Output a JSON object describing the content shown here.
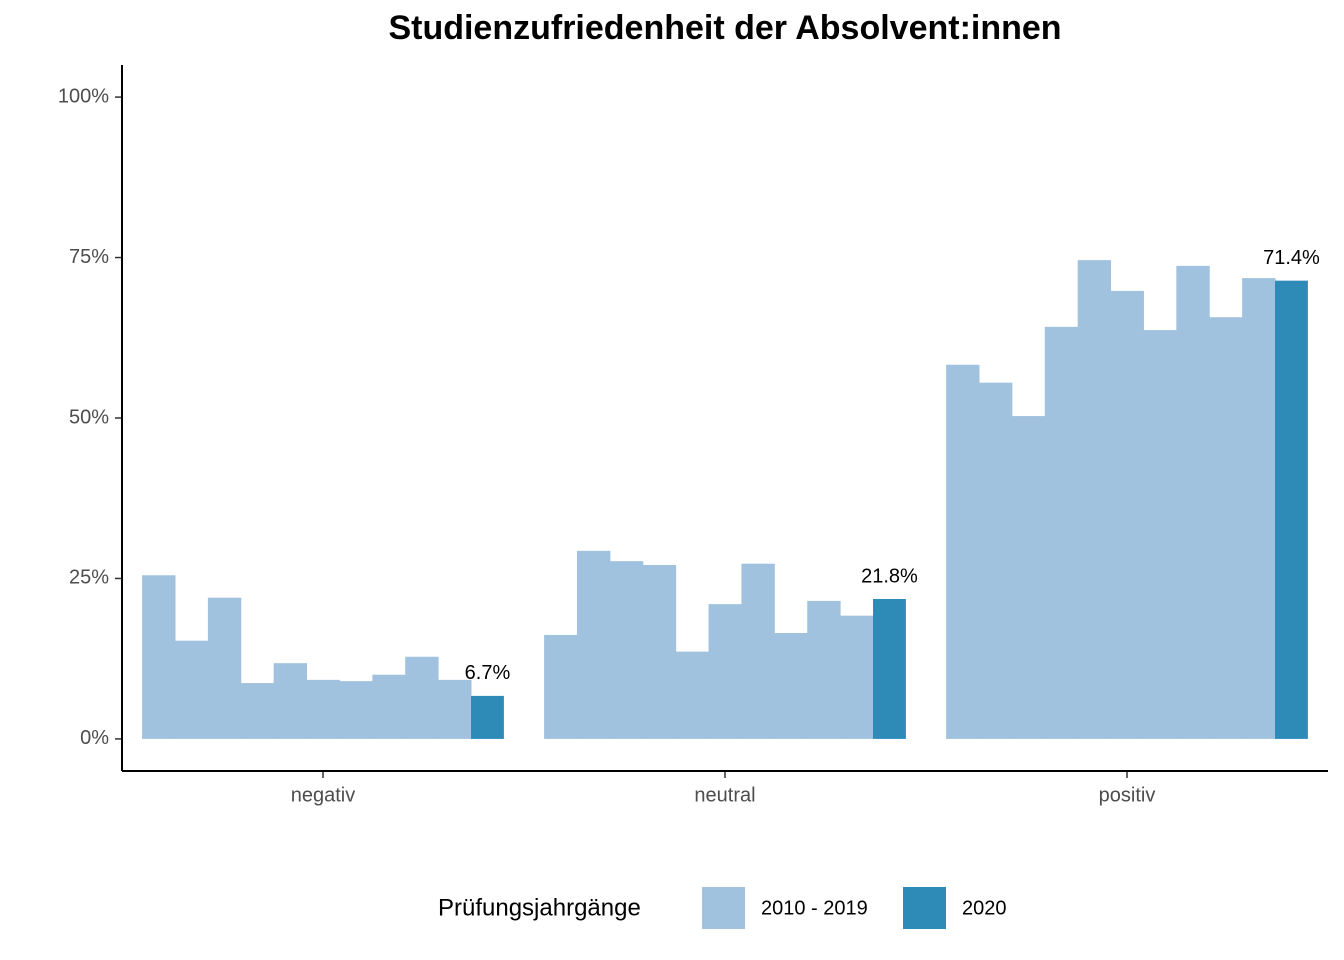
{
  "chart_data": {
    "type": "bar",
    "title": "Studienzufriedenheit der Absolvent:innen",
    "categories": [
      "negativ",
      "neutral",
      "positiv"
    ],
    "legend_title": "Prüfungsjahrgänge",
    "series": [
      {
        "name": "2010 - 2019",
        "color": "#a1c2de",
        "values": [
          [
            25.5,
            15.3,
            22.0,
            8.7,
            11.8,
            9.2,
            9.0,
            10.0,
            12.8,
            9.2
          ],
          [
            16.2,
            29.3,
            27.7,
            27.1,
            13.6,
            21.0,
            27.3,
            16.5,
            21.5,
            19.2
          ],
          [
            58.3,
            55.5,
            50.3,
            64.2,
            74.6,
            69.8,
            63.7,
            73.7,
            65.7,
            71.8
          ]
        ]
      },
      {
        "name": "2020",
        "color": "#2e8bb8",
        "values": [
          6.7,
          21.8,
          71.4
        ],
        "value_labels": [
          "6.7%",
          "21.8%",
          "71.4%"
        ]
      }
    ],
    "ylim": [
      -5,
      105
    ],
    "yticks": [
      {
        "value": 0,
        "label": "0%"
      },
      {
        "value": 25,
        "label": "25%"
      },
      {
        "value": 50,
        "label": "50%"
      },
      {
        "value": 75,
        "label": "75%"
      },
      {
        "value": 100,
        "label": "100%"
      }
    ],
    "legend_position": "bottom"
  }
}
